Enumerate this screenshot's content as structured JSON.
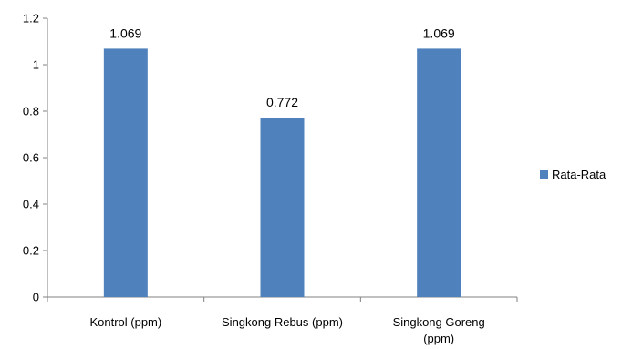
{
  "chart_data": {
    "type": "bar",
    "categories": [
      [
        "Kontrol (ppm)"
      ],
      [
        "Singkong Rebus (ppm)"
      ],
      [
        "Singkong Goreng",
        "(ppm)"
      ]
    ],
    "series": [
      {
        "name": "Rata-Rata",
        "values": [
          1.069,
          0.772,
          1.069
        ]
      }
    ],
    "data_labels": [
      "1.069",
      "0.772",
      "1.069"
    ],
    "ylim": [
      0,
      1.2
    ],
    "y_ticks": [
      0,
      0.2,
      0.4,
      0.6,
      0.8,
      1,
      1.2
    ],
    "y_tick_labels": [
      "0",
      "0.2",
      "0.4",
      "0.6",
      "0.8",
      "1",
      "1.2"
    ],
    "grid": false,
    "legend_position": "right",
    "colors": {
      "bar": "#4F81BD",
      "axis": "#808080"
    }
  }
}
